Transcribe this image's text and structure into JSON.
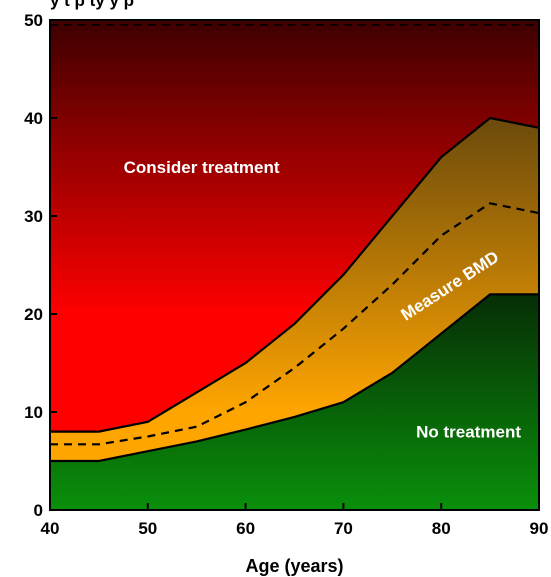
{
  "chart_data": {
    "type": "area",
    "title_partial": "y t p      ty     y      p",
    "xlabel": "Age (years)",
    "ylabel": "",
    "xlim": [
      40,
      90
    ],
    "ylim": [
      0,
      50
    ],
    "xticks": [
      40,
      50,
      60,
      70,
      80,
      90
    ],
    "yticks": [
      0,
      10,
      20,
      30,
      40,
      50
    ],
    "grid": false,
    "regions": [
      {
        "name": "Consider treatment",
        "label": "Consider treatment",
        "colors": [
          "#ff0000",
          "#3d0000"
        ]
      },
      {
        "name": "Measure BMD",
        "label": "Measure BMD",
        "colors": [
          "#ffa500",
          "#6b4a0c"
        ]
      },
      {
        "name": "No treatment",
        "label": "No treatment",
        "colors": [
          "#0a8f0a",
          "#062e06"
        ]
      }
    ],
    "series": [
      {
        "role": "upper-threshold",
        "style": "solid",
        "x": [
          40,
          45,
          50,
          55,
          60,
          65,
          70,
          75,
          80,
          85,
          90
        ],
        "y": [
          8,
          8,
          9,
          12,
          15,
          19,
          24,
          30,
          36,
          40,
          39
        ]
      },
      {
        "role": "intervention-threshold",
        "style": "dashed",
        "x": [
          40,
          45,
          50,
          55,
          60,
          65,
          70,
          75,
          80,
          85,
          90
        ],
        "y": [
          6.7,
          6.7,
          7.5,
          8.5,
          11,
          14.5,
          18.5,
          23,
          28,
          31.3,
          30.3
        ]
      },
      {
        "role": "lower-threshold",
        "style": "solid",
        "x": [
          40,
          45,
          50,
          55,
          60,
          65,
          70,
          75,
          80,
          85,
          90
        ],
        "y": [
          5,
          5,
          6,
          7,
          8.2,
          9.5,
          11,
          14,
          18,
          22,
          22
        ]
      }
    ],
    "reference_line": {
      "style": "dashed",
      "y": 49.5
    }
  }
}
